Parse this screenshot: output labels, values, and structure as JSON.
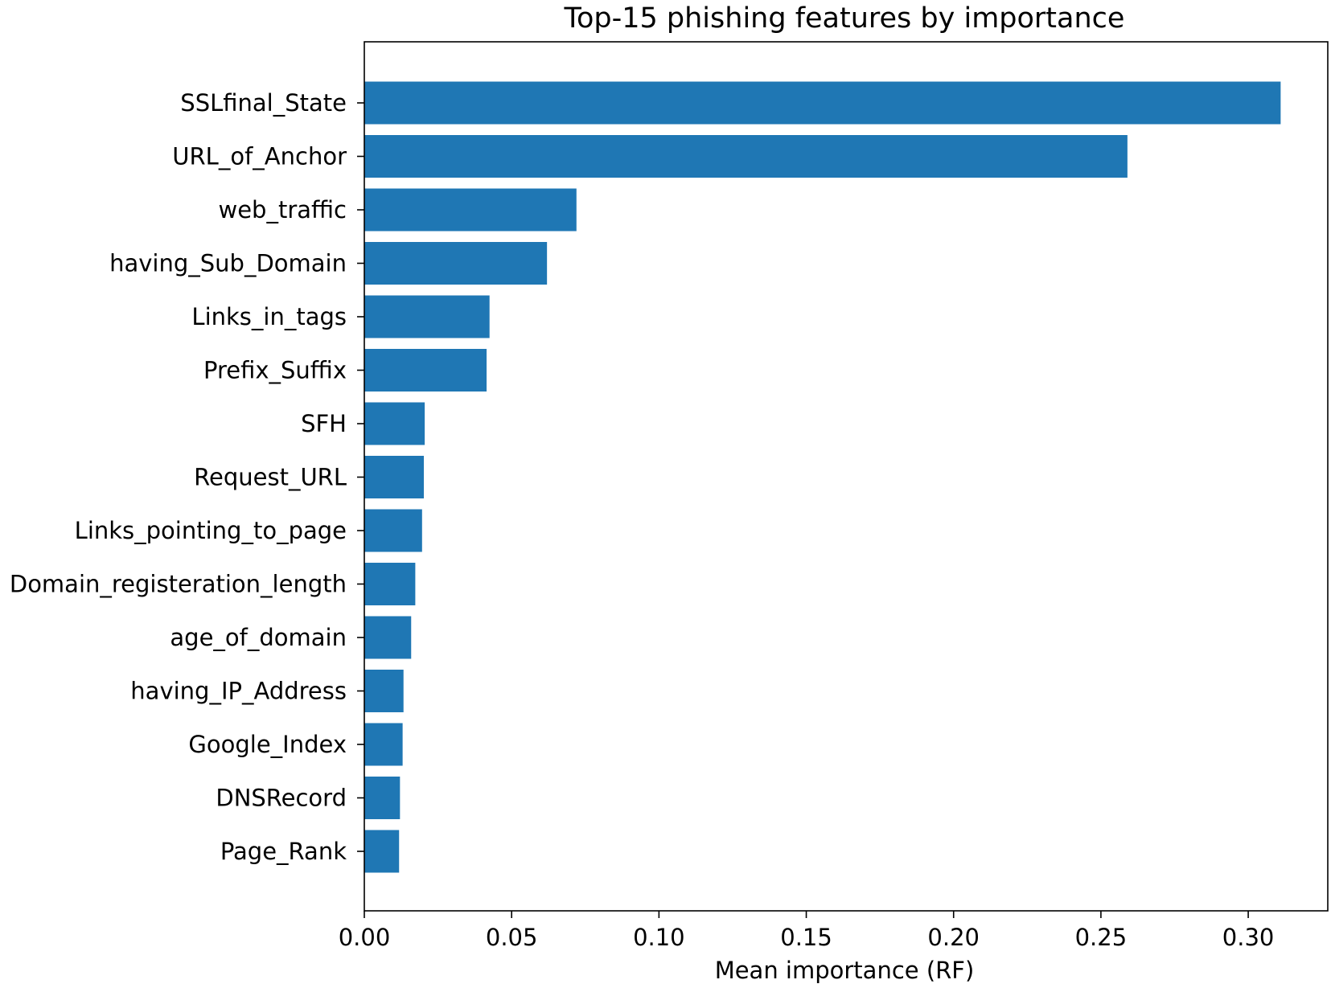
{
  "chart_data": {
    "type": "bar",
    "orientation": "horizontal",
    "title": "Top-15 phishing features by importance",
    "xlabel": "Mean importance (RF)",
    "ylabel": "",
    "xlim": [
      0,
      0.327
    ],
    "xticks": [
      "0.00",
      "0.05",
      "0.10",
      "0.15",
      "0.20",
      "0.25",
      "0.30"
    ],
    "grid": false,
    "bar_color": "#1f77b4",
    "categories": [
      "SSLfinal_State",
      "URL_of_Anchor",
      "web_traffic",
      "having_Sub_Domain",
      "Links_in_tags",
      "Prefix_Suffix",
      "SFH",
      "Request_URL",
      "Links_pointing_to_page",
      "Domain_registeration_length",
      "age_of_domain",
      "having_IP_Address",
      "Google_Index",
      "DNSRecord",
      "Page_Rank"
    ],
    "values": [
      0.311,
      0.259,
      0.072,
      0.062,
      0.0425,
      0.0415,
      0.0205,
      0.0202,
      0.0196,
      0.0173,
      0.0159,
      0.0133,
      0.013,
      0.0121,
      0.0118
    ]
  }
}
